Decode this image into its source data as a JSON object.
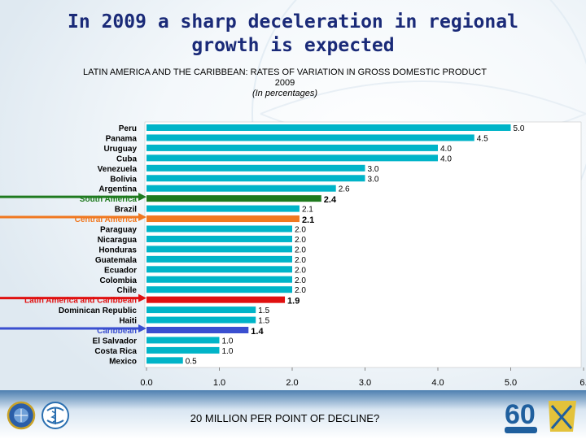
{
  "slide": {
    "title": "In 2009 a sharp deceleration in regional growth is expected",
    "subtitle": "LATIN AMERICA AND THE CARIBBEAN: RATES OF VARIATION IN GROSS DOMESTIC PRODUCT",
    "subtitle_year": "2009",
    "subtitle_units": "(In percentages)",
    "footer": "20 MILLION PER POINT OF DECLINE?",
    "footer_logo_text": "60"
  },
  "colors": {
    "default_bar": "#00b4c8",
    "south_america": "#1e7a1e",
    "central_america": "#f07820",
    "latin_america": "#e01010",
    "caribbean": "#3a4fd0",
    "title": "#1a2a78",
    "footer_bg": "#0e3d7a"
  },
  "chart_data": {
    "type": "bar",
    "orientation": "horizontal",
    "title": "LATIN AMERICA AND THE CARIBBEAN: RATES OF VARIATION IN GROSS DOMESTIC PRODUCT 2009",
    "xlim": [
      0,
      6
    ],
    "x_ticks": [
      "0.0",
      "1.0",
      "2.0",
      "3.0",
      "4.0",
      "5.0",
      "6."
    ],
    "grid": false,
    "categories": [
      "Peru",
      "Panama",
      "Uruguay",
      "Cuba",
      "Venezuela",
      "Bolivia",
      "Argentina",
      "South America",
      "Brazil",
      "Central America",
      "Paraguay",
      "Nicaragua",
      "Honduras",
      "Guatemala",
      "Ecuador",
      "Colombia",
      "Chile",
      "Latin America and Caribbean",
      "Dominican Republic",
      "Haiti",
      "Caribbean",
      "El Salvador",
      "Costa Rica",
      "Mexico"
    ],
    "values": [
      5.0,
      4.5,
      4.0,
      4.0,
      3.0,
      3.0,
      2.6,
      2.4,
      2.1,
      2.1,
      2.0,
      2.0,
      2.0,
      2.0,
      2.0,
      2.0,
      2.0,
      1.9,
      1.5,
      1.5,
      1.4,
      1.0,
      1.0,
      0.5
    ],
    "value_labels": [
      "5.0",
      "4.5",
      "4.0",
      "4.0",
      "3.0",
      "3.0",
      "2.6",
      "2.4",
      "2.1",
      "2.1",
      "2.0",
      "2.0",
      "2.0",
      "2.0",
      "2.0",
      "2.0",
      "2.0",
      "1.9",
      "1.5",
      "1.5",
      "1.4",
      "1.0",
      "1.0",
      "0.5"
    ],
    "highlights": {
      "South America": "south_america",
      "Central America": "central_america",
      "Latin America and Caribbean": "latin_america",
      "Caribbean": "caribbean"
    }
  }
}
